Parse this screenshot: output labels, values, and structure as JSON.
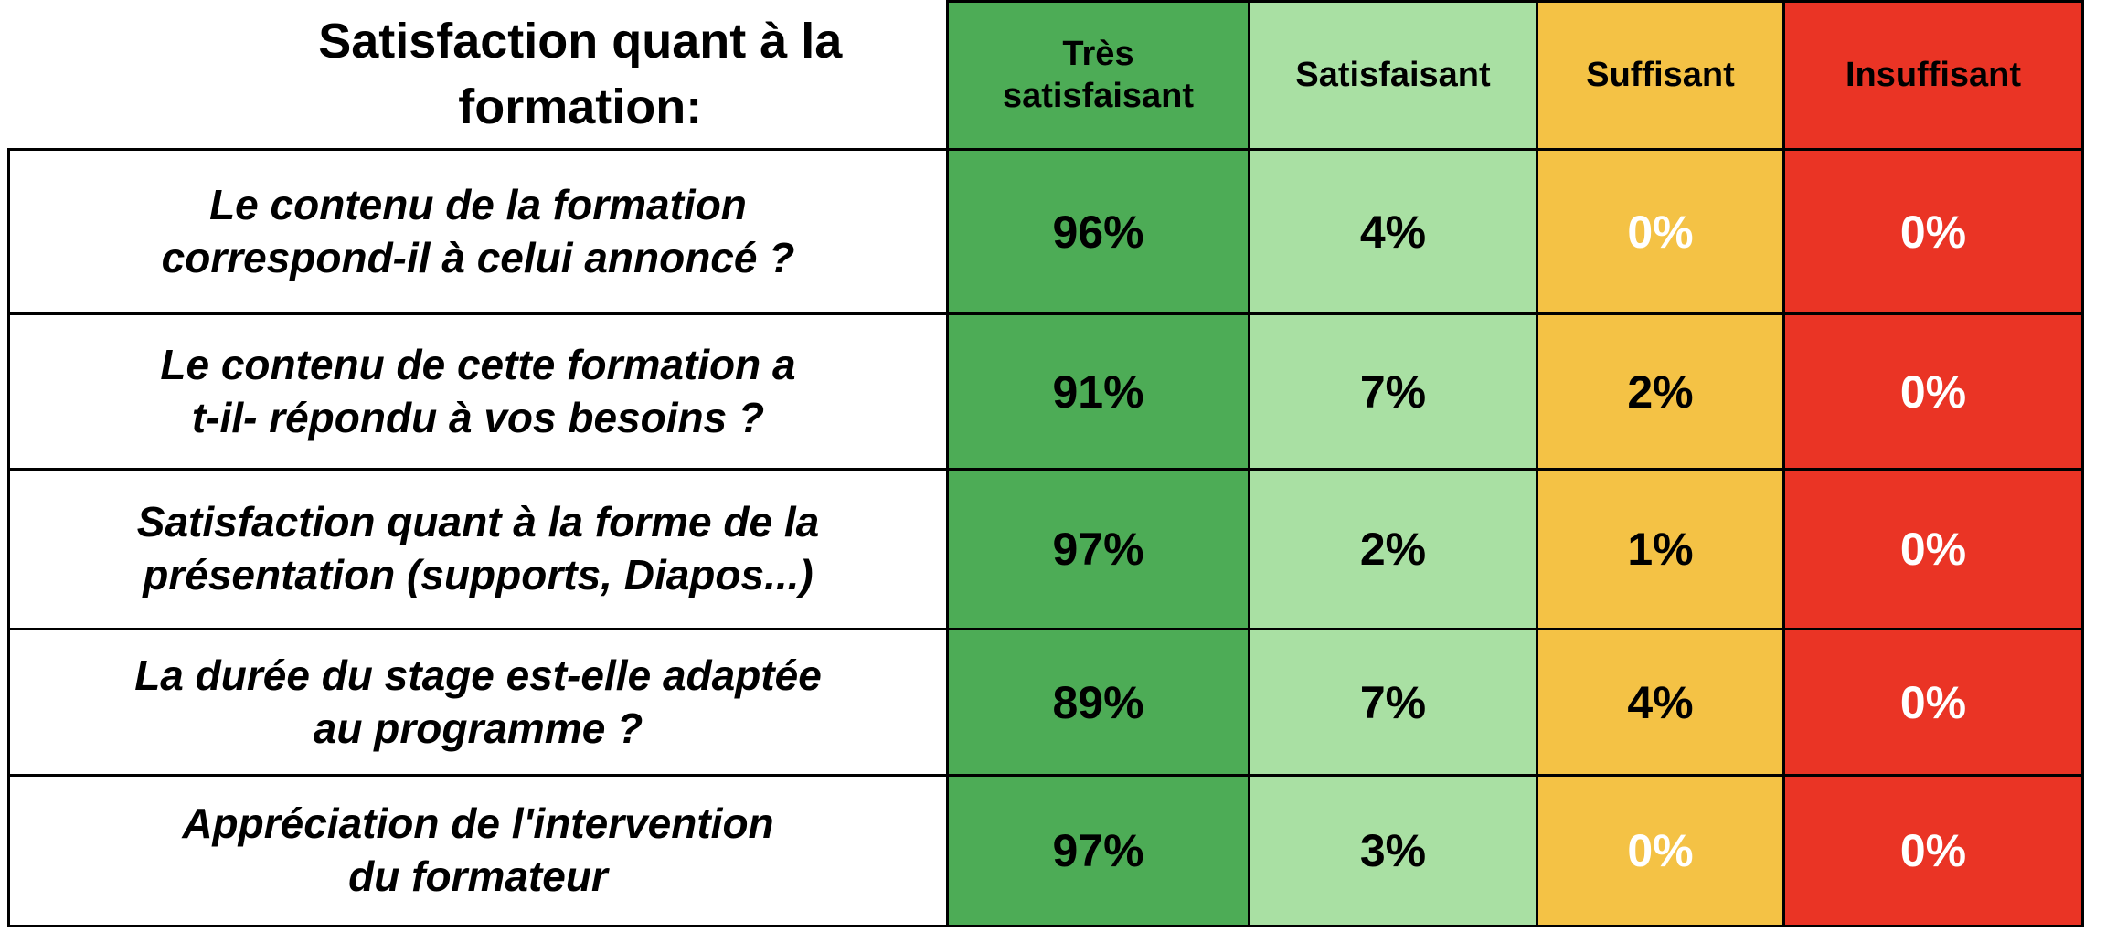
{
  "table": {
    "title": "Satisfaction quant à la\nformation:",
    "columns": [
      {
        "label": "Très\nsatisfaisant",
        "bg": "#4DAC56"
      },
      {
        "label": "Satisfaisant",
        "bg": "#A9E0A3"
      },
      {
        "label": "Suffisant",
        "bg": "#F4C245"
      },
      {
        "label": "Insuffisant",
        "bg": "#EA3425"
      }
    ],
    "rows": [
      {
        "question": "Le contenu de la formation\ncorrespond-il à celui annoncé ?",
        "values": [
          {
            "text": "96%",
            "color": "#000000"
          },
          {
            "text": "4%",
            "color": "#000000"
          },
          {
            "text": "0%",
            "color": "#FFFFFF"
          },
          {
            "text": "0%",
            "color": "#FFFFFF"
          }
        ]
      },
      {
        "question": "Le contenu de cette formation a\nt-il- répondu à vos besoins ?",
        "values": [
          {
            "text": "91%",
            "color": "#000000"
          },
          {
            "text": "7%",
            "color": "#000000"
          },
          {
            "text": "2%",
            "color": "#000000"
          },
          {
            "text": "0%",
            "color": "#FFFFFF"
          }
        ]
      },
      {
        "question": "Satisfaction quant à la forme de la\nprésentation (supports, Diapos...)",
        "values": [
          {
            "text": "97%",
            "color": "#000000"
          },
          {
            "text": "2%",
            "color": "#000000"
          },
          {
            "text": "1%",
            "color": "#000000"
          },
          {
            "text": "0%",
            "color": "#FFFFFF"
          }
        ]
      },
      {
        "question": "La durée du stage est-elle adaptée\nau programme ?",
        "values": [
          {
            "text": "89%",
            "color": "#000000"
          },
          {
            "text": "7%",
            "color": "#000000"
          },
          {
            "text": "4%",
            "color": "#000000"
          },
          {
            "text": "0%",
            "color": "#FFFFFF"
          }
        ]
      },
      {
        "question": "Appréciation de l'intervention\ndu formateur",
        "values": [
          {
            "text": "97%",
            "color": "#000000"
          },
          {
            "text": "3%",
            "color": "#000000"
          },
          {
            "text": "0%",
            "color": "#FFFFFF"
          },
          {
            "text": "0%",
            "color": "#FFFFFF"
          }
        ]
      }
    ],
    "border_color": "#000000"
  },
  "chart_data": {
    "type": "table",
    "title": "Satisfaction quant à la formation:",
    "columns": [
      "Très satisfaisant",
      "Satisfaisant",
      "Suffisant",
      "Insuffisant"
    ],
    "unit": "%",
    "rows": [
      {
        "label": "Le contenu de la formation correspond-il à celui annoncé ?",
        "values": [
          96,
          4,
          0,
          0
        ]
      },
      {
        "label": "Le contenu de cette formation a t-il- répondu à vos besoins ?",
        "values": [
          91,
          7,
          2,
          0
        ]
      },
      {
        "label": "Satisfaction quant à la forme de la présentation (supports, Diapos...)",
        "values": [
          97,
          2,
          1,
          0
        ]
      },
      {
        "label": "La durée du stage est-elle adaptée au programme ?",
        "values": [
          89,
          7,
          4,
          0
        ]
      },
      {
        "label": "Appréciation de l'intervention du formateur",
        "values": [
          97,
          3,
          0,
          0
        ]
      }
    ],
    "legend_colors": {
      "Très satisfaisant": "#4DAC56",
      "Satisfaisant": "#A9E0A3",
      "Suffisant": "#F4C245",
      "Insuffisant": "#EA3425"
    }
  }
}
